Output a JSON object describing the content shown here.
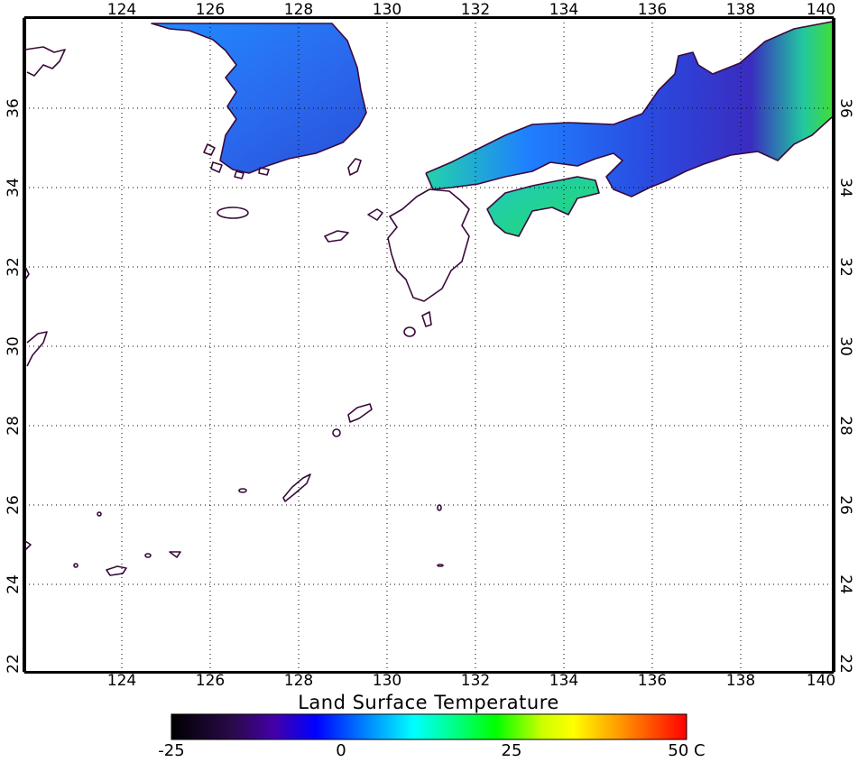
{
  "map": {
    "title": "Land Surface Temperature",
    "lon_ticks": [
      "124",
      "126",
      "128",
      "130",
      "132",
      "134",
      "136",
      "138",
      "140"
    ],
    "lat_ticks": [
      "22",
      "24",
      "26",
      "28",
      "30",
      "32",
      "34",
      "36"
    ],
    "lon_range": [
      122,
      140.2
    ],
    "lat_range": [
      21.8,
      38
    ],
    "grid": "dotted",
    "regions_with_data": [
      "Korean Peninsula",
      "Honshu (western and central)",
      "Shikoku"
    ]
  },
  "colorbar": {
    "labels": [
      "-25",
      "0",
      "25",
      "50 C"
    ],
    "range": [
      -25,
      50
    ],
    "unit": "C",
    "colors": [
      "#000000",
      "#2a0a4a",
      "#4400aa",
      "#0000ff",
      "#0088ff",
      "#00ffff",
      "#00ff88",
      "#00ff00",
      "#ccff00",
      "#ffff00",
      "#ff9900",
      "#ff0000"
    ]
  }
}
